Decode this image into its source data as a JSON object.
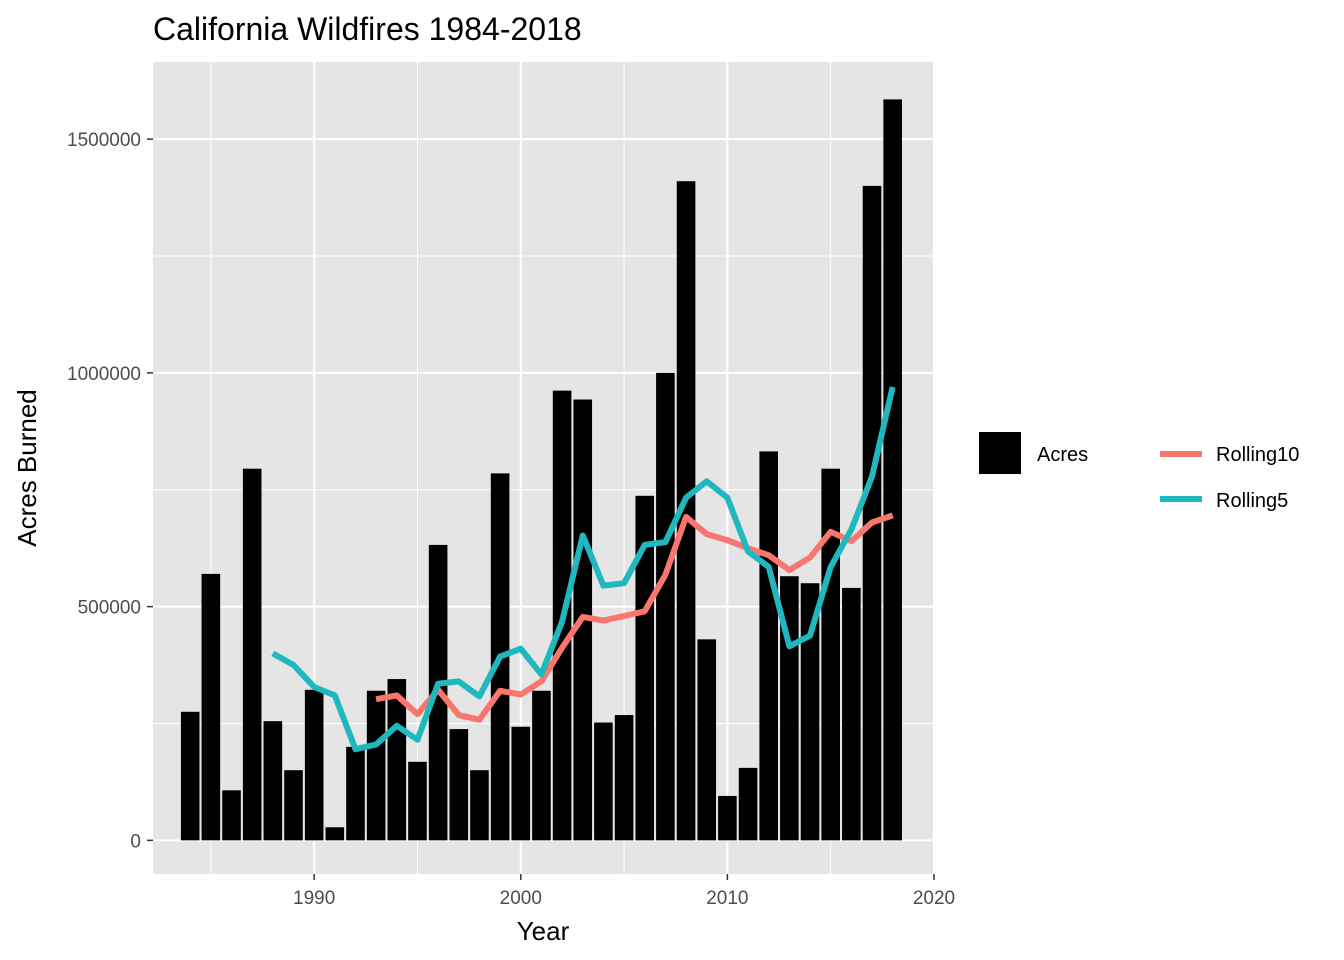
{
  "chart_data": {
    "type": "bar",
    "title": "California Wildfires 1984-2018",
    "xlabel": "Year",
    "ylabel": "Acres Burned",
    "xlim": [
      1982.2,
      2020.0
    ],
    "ylim": [
      -72000,
      1665000
    ],
    "x_ticks": [
      1990,
      2000,
      2010,
      2020
    ],
    "y_ticks": [
      0,
      500000,
      1000000,
      1500000
    ],
    "x_tick_labels": [
      "1990",
      "2000",
      "2010",
      "2020"
    ],
    "y_tick_labels": [
      "0",
      "500000",
      "1000000",
      "1500000"
    ],
    "grid": true,
    "legend_position": "right",
    "colors": {
      "panel": "#e5e5e5",
      "grid_major": "#ffffff",
      "bar": "#000000",
      "rolling10": "#f8766d",
      "rolling5": "#1fb8bf",
      "tick": "#333333"
    },
    "bars": {
      "name": "Acres",
      "x": [
        1984,
        1985,
        1986,
        1987,
        1988,
        1989,
        1990,
        1991,
        1992,
        1993,
        1994,
        1995,
        1996,
        1997,
        1998,
        1999,
        2000,
        2001,
        2002,
        2003,
        2004,
        2005,
        2006,
        2007,
        2008,
        2009,
        2010,
        2011,
        2012,
        2013,
        2014,
        2015,
        2016,
        2017,
        2018
      ],
      "values": [
        275000,
        570000,
        107000,
        795000,
        255000,
        150000,
        322000,
        28000,
        200000,
        320000,
        345000,
        168000,
        632000,
        238000,
        150000,
        785000,
        243000,
        320000,
        962000,
        943000,
        252000,
        268000,
        737000,
        1000000,
        1410000,
        430000,
        95000,
        155000,
        832000,
        565000,
        550000,
        795000,
        540000,
        1400000,
        1585000
      ]
    },
    "series": [
      {
        "name": "Rolling10",
        "x": [
          1993,
          1994,
          1995,
          1996,
          1997,
          1998,
          1999,
          2000,
          2001,
          2002,
          2003,
          2004,
          2005,
          2006,
          2007,
          2008,
          2009,
          2010,
          2011,
          2012,
          2013,
          2014,
          2015,
          2016,
          2017,
          2018
        ],
        "values": [
          302000,
          310000,
          270000,
          322000,
          268000,
          258000,
          320000,
          312000,
          340000,
          412000,
          478000,
          470000,
          480000,
          490000,
          568000,
          692000,
          655000,
          642000,
          625000,
          610000,
          578000,
          605000,
          660000,
          640000,
          680000,
          695000
        ]
      },
      {
        "name": "Rolling5",
        "x": [
          1988,
          1989,
          1990,
          1991,
          1992,
          1993,
          1994,
          1995,
          1996,
          1997,
          1998,
          1999,
          2000,
          2001,
          2002,
          2003,
          2004,
          2005,
          2006,
          2007,
          2008,
          2009,
          2010,
          2011,
          2012,
          2013,
          2014,
          2015,
          2016,
          2017,
          2018
        ],
        "values": [
          400000,
          375000,
          328000,
          310000,
          195000,
          205000,
          245000,
          215000,
          335000,
          340000,
          308000,
          393000,
          410000,
          355000,
          468000,
          652000,
          545000,
          550000,
          632000,
          638000,
          733000,
          768000,
          733000,
          618000,
          585000,
          415000,
          438000,
          585000,
          665000,
          778000,
          970000
        ]
      }
    ],
    "legend": {
      "bar_label": "Acres",
      "line_labels": [
        "Rolling10",
        "Rolling5"
      ]
    }
  }
}
